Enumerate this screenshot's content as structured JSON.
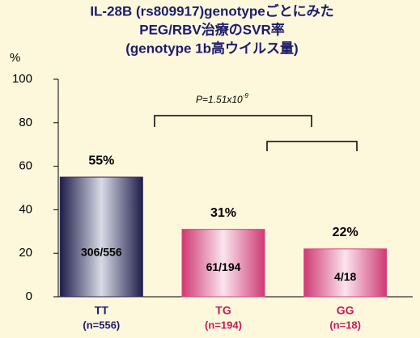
{
  "chart_data": {
    "type": "bar",
    "title": [
      "IL-28B (rs809917)genotypeごとにみた",
      "PEG/RBV治療のSVR率",
      "(genotype 1b高ウイルス量)"
    ],
    "y_unit": "%",
    "categories": [
      "TT",
      "TG",
      "GG"
    ],
    "category_sublabels": [
      "(n=556)",
      "(n=194)",
      "(n=18)"
    ],
    "category_colors": [
      "#1c1c6b",
      "#c41a5c",
      "#c41a5c"
    ],
    "values": [
      55,
      31,
      22
    ],
    "value_labels": [
      "55%",
      "31%",
      "22%"
    ],
    "inner_labels": [
      "306/556",
      "61/194",
      "4/18"
    ],
    "bar_colors": [
      "#2a2a5a",
      "#d8447e",
      "#d8447e"
    ],
    "annotation": {
      "text": "P=1.51x10",
      "superscript": "-9"
    },
    "ylim": [
      0,
      100
    ],
    "yticks": [
      0,
      20,
      40,
      60,
      80,
      100
    ],
    "grid": false
  }
}
